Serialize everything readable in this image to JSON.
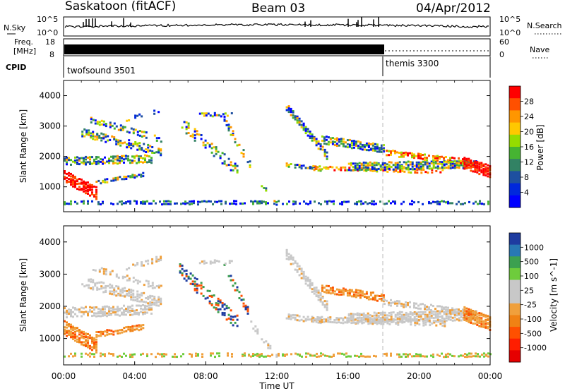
{
  "header": {
    "station": "Saskatoon (fitACF)",
    "beam": "Beam 03",
    "date": "04/Apr/2012"
  },
  "nsky_panel": {
    "left_label": "N.Sky",
    "right_label": "N.Search",
    "left_ticks": [
      "10^5",
      "10^0"
    ],
    "right_ticks": [
      "10^5",
      "10^0"
    ]
  },
  "freq_panel": {
    "left_label_1": "Freq.",
    "left_label_2": "[MHz]",
    "left_ticks": [
      "18",
      "8"
    ],
    "right_label": "Nave",
    "right_ticks": [
      "60",
      "0"
    ]
  },
  "cpid_panel": {
    "label": "CPID",
    "modes": [
      {
        "name": "twofsound 3501",
        "start_hour": 0
      },
      {
        "name": "themis 3300",
        "start_hour": 18
      }
    ]
  },
  "x_axis": {
    "title": "Time UT",
    "ticks": [
      "00:00",
      "04:00",
      "08:00",
      "12:00",
      "16:00",
      "20:00",
      "00:00"
    ]
  },
  "chart_data": [
    {
      "type": "heatmap",
      "title": "",
      "xlabel": "Time UT",
      "ylabel": "Slant Range [km]",
      "xlim": [
        0,
        24
      ],
      "ylim": [
        180,
        4500
      ],
      "y_ticks": [
        1000,
        2000,
        3000,
        4000
      ],
      "colorbar": {
        "label": "Power [dB]",
        "ticks": [
          "28",
          "24",
          "20",
          "16",
          "12",
          "8",
          "4"
        ],
        "colors": [
          "#ff0000",
          "#ff5000",
          "#ff9600",
          "#ffc800",
          "#96dc00",
          "#46b432",
          "#328264",
          "#1e50a0",
          "#0028dc",
          "#0000ff"
        ]
      },
      "notes": "Ground and ionospheric backscatter echoes, strongest (~28 dB) at 1000-1500 km near 00:00 and 23:00 UT"
    },
    {
      "type": "heatmap",
      "title": "",
      "xlabel": "Time UT",
      "ylabel": "Slant Range [km]",
      "xlim": [
        0,
        24
      ],
      "ylim": [
        180,
        4500
      ],
      "y_ticks": [
        1000,
        2000,
        3000,
        4000
      ],
      "colorbar": {
        "label": "Velocity [m s^-1]",
        "ticks": [
          "1000",
          "500",
          "100",
          "25",
          "-25",
          "-100",
          "-500",
          "-1000"
        ],
        "colors": [
          "#1e3ca0",
          "#2878b4",
          "#3ca050",
          "#6ecc3c",
          "#c8c8c8",
          "#c8c8c8",
          "#f0a03c",
          "#f08214",
          "#ff5000",
          "#ff1e00",
          "#e60000"
        ]
      },
      "notes": "Mostly ground scatter (grey, |v|<25 m/s) with negative Doppler (orange) returns"
    }
  ]
}
